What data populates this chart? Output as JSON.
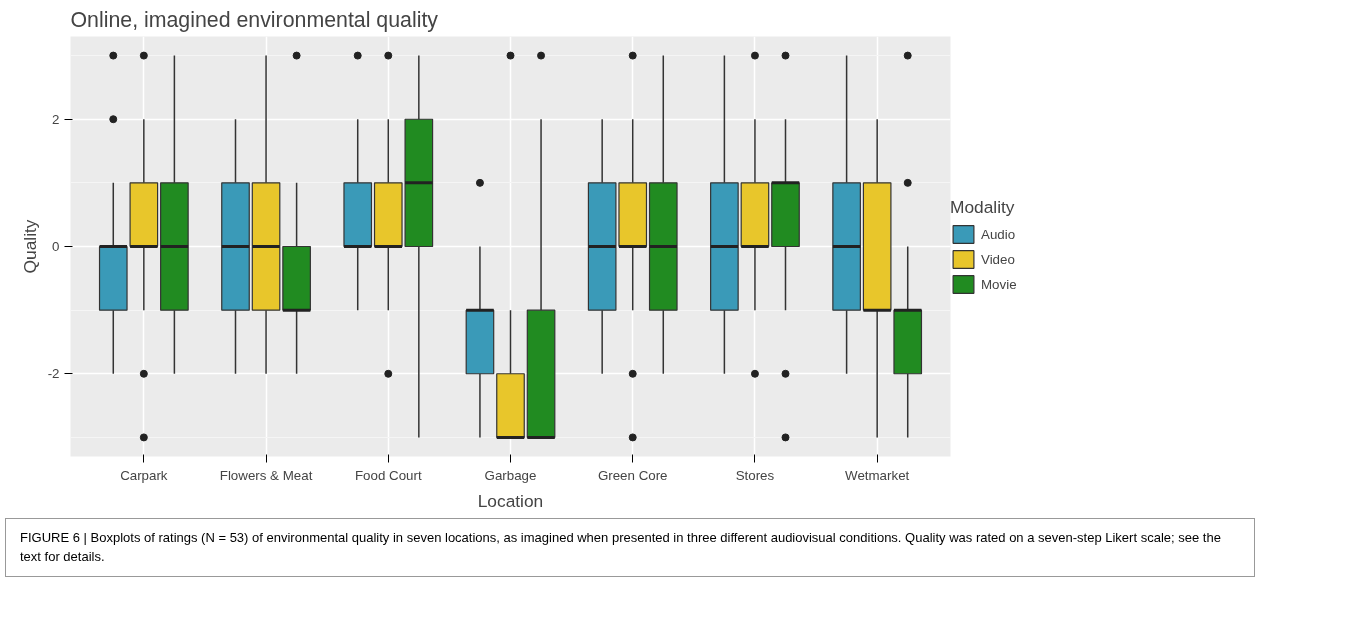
{
  "chart_data": {
    "type": "box",
    "title": "Online, imagined environmental quality",
    "xlabel": "Location",
    "ylabel": "Quality",
    "legend_title": "Modality",
    "categories": [
      "Carpark",
      "Flowers & Meat",
      "Food Court",
      "Garbage",
      "Green Core",
      "Stores",
      "Wetmarket"
    ],
    "ylim": [
      -3.3,
      3.3
    ],
    "yticks": [
      -2,
      0,
      2
    ],
    "grid": true,
    "legend": "right",
    "series": [
      {
        "name": "Audio",
        "color": "#3a9ab8",
        "boxes": [
          {
            "low": -2,
            "q1": -1,
            "median": 0,
            "q3": 0,
            "high": 1,
            "outliers": [
              3,
              2
            ]
          },
          {
            "low": -2,
            "q1": -1,
            "median": 0,
            "q3": 1,
            "high": 2
          },
          {
            "low": -1,
            "q1": 0,
            "median": 0,
            "q3": 1,
            "high": 2,
            "outliers": [
              3
            ]
          },
          {
            "low": -3,
            "q1": -2,
            "median": -1,
            "q3": -1,
            "high": 0,
            "outliers": [
              1
            ]
          },
          {
            "low": -2,
            "q1": -1,
            "median": 0,
            "q3": 1,
            "high": 2
          },
          {
            "low": -2,
            "q1": -1,
            "median": 0,
            "q3": 1,
            "high": 3
          },
          {
            "low": -2,
            "q1": -1,
            "median": 0,
            "q3": 1,
            "high": 3
          }
        ]
      },
      {
        "name": "Video",
        "color": "#e8c62b",
        "boxes": [
          {
            "low": -1,
            "q1": 0,
            "median": 0,
            "q3": 1,
            "high": 2,
            "outliers": [
              3,
              -2,
              -3
            ]
          },
          {
            "low": -2,
            "q1": -1,
            "median": 0,
            "q3": 1,
            "high": 3
          },
          {
            "low": -1,
            "q1": 0,
            "median": 0,
            "q3": 1,
            "high": 2,
            "outliers": [
              3,
              -2
            ]
          },
          {
            "low": -3,
            "q1": -3,
            "median": -3,
            "q3": -2,
            "high": -1,
            "outliers": [
              3
            ]
          },
          {
            "low": -1,
            "q1": 0,
            "median": 0,
            "q3": 1,
            "high": 2,
            "outliers": [
              3,
              -2,
              -3
            ]
          },
          {
            "low": -1,
            "q1": 0,
            "median": 0,
            "q3": 1,
            "high": 2,
            "outliers": [
              3,
              -2
            ]
          },
          {
            "low": -3,
            "q1": -1,
            "median": -1,
            "q3": 1,
            "high": 2
          }
        ]
      },
      {
        "name": "Movie",
        "color": "#218b21",
        "boxes": [
          {
            "low": -2,
            "q1": -1,
            "median": 0,
            "q3": 1,
            "high": 3
          },
          {
            "low": -2,
            "q1": -1,
            "median": -1,
            "q3": 0,
            "high": 1,
            "outliers": [
              3
            ]
          },
          {
            "low": -3,
            "q1": 0,
            "median": 1,
            "q3": 2,
            "high": 3
          },
          {
            "low": -3,
            "q1": -3,
            "median": -3,
            "q3": -1,
            "high": 2,
            "outliers": [
              3
            ]
          },
          {
            "low": -2,
            "q1": -1,
            "median": 0,
            "q3": 1,
            "high": 3
          },
          {
            "low": -1,
            "q1": 0,
            "median": 1,
            "q3": 1,
            "high": 2,
            "outliers": [
              3,
              -2,
              -3
            ]
          },
          {
            "low": -3,
            "q1": -2,
            "median": -1,
            "q3": -1,
            "high": 0,
            "outliers": [
              3,
              1
            ]
          }
        ]
      }
    ],
    "annotations": [
      "FIGURE 6 | Boxplots of ratings (N = 53) of environmental quality in seven locations, as imagined when presented in three different audiovisual conditions. Quality was rated on a seven-step Likert scale; see the text for details."
    ]
  }
}
